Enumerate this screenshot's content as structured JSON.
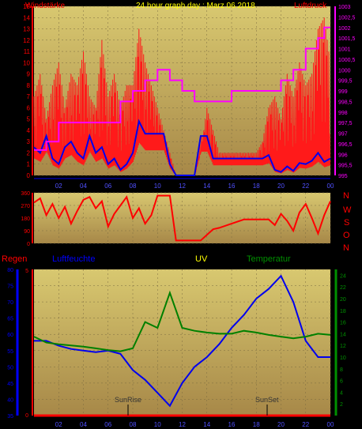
{
  "header": {
    "left_label": "Windstärke",
    "title": "24 hour graph day : Marz 06 2018",
    "right_label": "Luftdruck"
  },
  "compass": [
    "N",
    "W",
    "S",
    "O",
    "N"
  ],
  "bottom_labels": {
    "regen": "Regen",
    "luftfeuchte": "Luftfeuchte",
    "uv": "UV",
    "temperatur": "Temperatur"
  },
  "colors": {
    "wind": "#ff1a1a",
    "wind_avg": "#0000ee",
    "pressure": "#ff00ff",
    "wind_dir": "#ff0000",
    "humidity": "#0000ee",
    "temperature": "#008000",
    "rain": "#ff0000",
    "uv": "#ffff00",
    "title": "#ffff00",
    "red_text": "#ff0000",
    "blue_text": "#0000ff",
    "green_text": "#009000",
    "plot_top": "#d8c870",
    "plot_bottom": "#a78848"
  },
  "chart_data": [
    {
      "type": "line",
      "title": "24 hour graph day : Marz 06 2018",
      "ylabel": "Windstärke",
      "y2label": "Luftdruck",
      "x_ticks": [
        "02",
        "04",
        "06",
        "08",
        "10",
        "12",
        "14",
        "16",
        "18",
        "20",
        "22",
        "00"
      ],
      "ylim": [
        0,
        15
      ],
      "y_ticks": [
        "0",
        "1",
        "2",
        "3",
        "4",
        "5",
        "6",
        "7",
        "8",
        "9",
        "10",
        "11",
        "12",
        "13",
        "14",
        "15"
      ],
      "y2lim": [
        995,
        1003
      ],
      "y2_ticks": [
        "995",
        "995,5",
        "996",
        "996,5",
        "997",
        "997,5",
        "998",
        "998,5",
        "999",
        "999,5",
        "1000",
        "1000,5",
        "1001",
        "1001,5",
        "1002",
        "1002,5",
        "1003"
      ],
      "series": [
        {
          "name": "Windstärke Böen",
          "axis": "y",
          "x": [
            0,
            0.5,
            1,
            1.5,
            2,
            2.5,
            3,
            3.5,
            4,
            4.5,
            5,
            5.5,
            6,
            6.5,
            7,
            7.5,
            8,
            8.5,
            9,
            9.5,
            10,
            10.5,
            11,
            11.5,
            12,
            12.5,
            13,
            13.5,
            14,
            14.5,
            15,
            15.5,
            16,
            16.5,
            17,
            17.5,
            18,
            18.5,
            19,
            19.5,
            20,
            20.5,
            21,
            21.5,
            22,
            22.5,
            23,
            23.5,
            24
          ],
          "values": [
            7,
            9,
            5,
            8,
            10,
            6,
            9,
            8,
            11,
            7,
            6,
            12,
            7,
            9,
            6,
            8,
            8,
            13,
            10,
            8,
            6,
            4,
            2,
            0,
            0,
            0,
            0,
            2,
            6,
            4,
            2,
            2,
            2,
            2,
            2,
            2,
            2,
            3,
            6,
            7,
            5,
            9,
            7,
            10,
            8,
            9,
            13,
            14,
            10
          ]
        },
        {
          "name": "Windstärke Mittel",
          "axis": "y",
          "x": [
            0,
            0.5,
            1,
            1.5,
            2,
            2.5,
            3,
            3.5,
            4,
            4.5,
            5,
            5.5,
            6,
            6.5,
            7,
            7.5,
            8,
            8.5,
            9,
            9.5,
            10,
            10.5,
            11,
            11.5,
            12,
            12.5,
            13,
            13.5,
            14,
            14.5,
            15,
            15.5,
            16,
            16.5,
            17,
            17.5,
            18,
            18.5,
            19,
            19.5,
            20,
            20.5,
            21,
            21.5,
            22,
            22.5,
            23,
            23.5,
            24
          ],
          "values": [
            2.5,
            2,
            3.5,
            1.5,
            1,
            2.5,
            3,
            2,
            1.5,
            3.5,
            2,
            2.5,
            1,
            1.5,
            0.5,
            1,
            2,
            4.8,
            3.7,
            3.7,
            3.7,
            3.7,
            1,
            0,
            0,
            0,
            0,
            3.5,
            3.5,
            1.5,
            1.5,
            1.5,
            1.5,
            1.5,
            1.5,
            1.5,
            1.5,
            1.5,
            1.8,
            0.5,
            0.3,
            0.8,
            0.4,
            1.1,
            1,
            1.3,
            2,
            1.2,
            1.5
          ]
        },
        {
          "name": "Luftdruck",
          "axis": "y2",
          "x": [
            0,
            1,
            2,
            3,
            4,
            5,
            6,
            7,
            8,
            9,
            10,
            11,
            12,
            13,
            14,
            15,
            16,
            17,
            18,
            19,
            20,
            21,
            22,
            23,
            23.5,
            24
          ],
          "values": [
            996.2,
            996.6,
            997.5,
            997.5,
            997.5,
            997.5,
            997.5,
            998.5,
            999,
            999.5,
            1000,
            999.5,
            999,
            998.5,
            998.5,
            998.5,
            999,
            999,
            999,
            999,
            999.5,
            1000,
            1001,
            1001.5,
            1002,
            1002
          ]
        }
      ]
    },
    {
      "type": "line",
      "title": "",
      "ylabel": "",
      "ylim": [
        0,
        360
      ],
      "y_ticks": [
        "0",
        "90",
        "180",
        "270",
        "360"
      ],
      "series": [
        {
          "name": "Windrichtung",
          "x": [
            0,
            0.5,
            1,
            1.5,
            2,
            2.5,
            3,
            3.5,
            4,
            4.5,
            5,
            5.5,
            6,
            6.5,
            7,
            7.5,
            8,
            8.5,
            9,
            9.5,
            10,
            10.5,
            11,
            11.5,
            12,
            12.5,
            13,
            13.5,
            14,
            14.5,
            15,
            16,
            17,
            18,
            19,
            19.5,
            20,
            20.5,
            21,
            21.5,
            22,
            22.5,
            23,
            23.5,
            24
          ],
          "values": [
            290,
            320,
            200,
            280,
            180,
            260,
            140,
            230,
            310,
            330,
            250,
            300,
            120,
            210,
            270,
            330,
            180,
            250,
            140,
            200,
            340,
            340,
            340,
            20,
            20,
            20,
            20,
            20,
            60,
            100,
            110,
            140,
            170,
            170,
            170,
            130,
            210,
            160,
            90,
            220,
            280,
            180,
            70,
            200,
            300
          ]
        }
      ]
    },
    {
      "type": "line",
      "title": "",
      "x_ticks": [
        "02",
        "04",
        "06",
        "08",
        "10",
        "12",
        "14",
        "16",
        "18",
        "20",
        "22",
        "00"
      ],
      "annotations": [
        "SunRise",
        "SunSet"
      ],
      "ylim": [
        35,
        80
      ],
      "y_ticks": [
        "35",
        "40",
        "45",
        "50",
        "55",
        "60",
        "65",
        "70",
        "75",
        "80"
      ],
      "rain_ticks": [
        "0",
        "5"
      ],
      "y2lim": [
        0,
        25
      ],
      "y2_ticks": [
        "2",
        "4",
        "6",
        "8",
        "10",
        "12",
        "14",
        "16",
        "18",
        "20",
        "22",
        "24"
      ],
      "series": [
        {
          "name": "Luftfeuchte",
          "axis": "y",
          "x": [
            0,
            1,
            2,
            3,
            4,
            5,
            6,
            7,
            8,
            9,
            10,
            11,
            12,
            13,
            14,
            15,
            16,
            17,
            18,
            19,
            20,
            21,
            22,
            23,
            24
          ],
          "values": [
            58,
            58,
            56.5,
            55.5,
            55,
            54.5,
            55,
            54,
            49,
            46,
            42,
            38,
            45,
            50,
            53,
            57,
            62,
            66,
            71,
            74,
            78,
            70,
            58,
            53,
            53
          ]
        },
        {
          "name": "Temperatur",
          "axis": "y2",
          "x": [
            0,
            1,
            2,
            3,
            4,
            5,
            6,
            7,
            8,
            9,
            10,
            11,
            12,
            13,
            14,
            15,
            16,
            17,
            18,
            19,
            20,
            21,
            22,
            23,
            24
          ],
          "values": [
            13.5,
            12.5,
            12.2,
            12,
            11.8,
            11.5,
            11.2,
            11,
            11.5,
            16,
            15,
            21,
            15,
            14.5,
            14.2,
            14,
            14,
            14.5,
            14.2,
            13.8,
            13.5,
            13.2,
            13.5,
            14,
            13.8
          ]
        },
        {
          "name": "Regen",
          "axis": "rain",
          "x": [
            0,
            24
          ],
          "values": [
            0,
            0
          ]
        }
      ]
    }
  ]
}
